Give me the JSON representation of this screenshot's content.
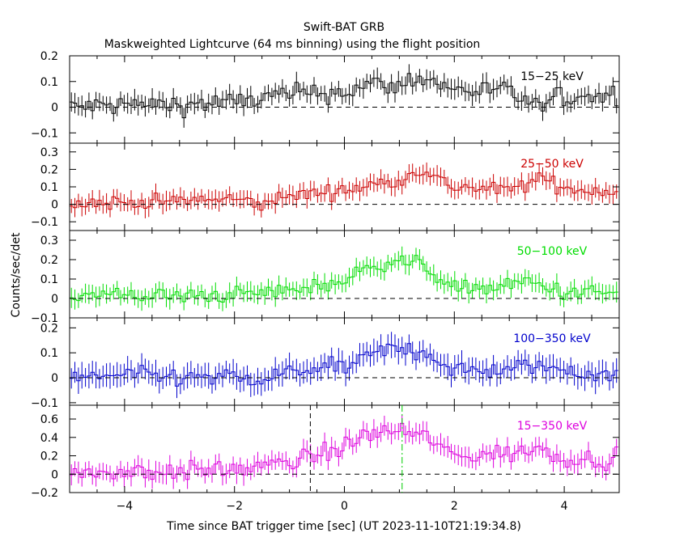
{
  "title": "Swift-BAT GRB",
  "subtitle": "Maskweighted Lightcurve (64 ms binning) using the flight position",
  "xlabel": "Time since BAT trigger time [sec] (UT 2023-11-10T21:19:34.8)",
  "ylabel": "Counts/sec/det",
  "colors": {
    "axes": "#000000",
    "band1": "#000000",
    "band2": "#cc0000",
    "band3": "#00dd00",
    "band4": "#0000cc",
    "band5": "#dd00dd",
    "trigger_marker": "#000000",
    "t90_marker": "#00cc00"
  },
  "chart_data": {
    "type": "line",
    "binning_sec": 0.064,
    "xlim": [
      -5,
      5
    ],
    "x_ticks": [
      "−4",
      "−2",
      "0",
      "2",
      "4"
    ],
    "shared_x": true,
    "panels": [
      {
        "name": "15−25 keV",
        "color": "#000000",
        "ylim": [
          -0.14,
          0.2
        ],
        "y_ticks": [
          "−0.1",
          "0",
          "0.1",
          "0.2"
        ],
        "zero_line": true,
        "key_points": [
          [
            -5,
            0.0
          ],
          [
            -4,
            0.01
          ],
          [
            -3,
            0.01
          ],
          [
            -2,
            0.02
          ],
          [
            -1,
            0.05
          ],
          [
            0,
            0.06
          ],
          [
            0.5,
            0.09
          ],
          [
            1,
            0.08
          ],
          [
            1.3,
            0.12
          ],
          [
            2,
            0.07
          ],
          [
            3,
            0.06
          ],
          [
            3.5,
            0.0
          ],
          [
            4,
            0.04
          ],
          [
            5,
            0.05
          ]
        ],
        "noise_amp": 0.04,
        "err": 0.035
      },
      {
        "name": "25−50 keV",
        "color": "#cc0000",
        "ylim": [
          -0.15,
          0.35
        ],
        "y_ticks": [
          "−0.1",
          "0",
          "0.1",
          "0.2",
          "0.3"
        ],
        "zero_line": true,
        "key_points": [
          [
            -5,
            0.01
          ],
          [
            -4,
            0.01
          ],
          [
            -3,
            0.02
          ],
          [
            -2,
            0.03
          ],
          [
            -1.5,
            0.0
          ],
          [
            -1,
            0.05
          ],
          [
            0,
            0.08
          ],
          [
            0.5,
            0.11
          ],
          [
            1,
            0.14
          ],
          [
            1.3,
            0.2
          ],
          [
            2,
            0.1
          ],
          [
            3,
            0.08
          ],
          [
            3.6,
            0.15
          ],
          [
            4,
            0.09
          ],
          [
            5,
            0.07
          ]
        ],
        "noise_amp": 0.04,
        "err": 0.05
      },
      {
        "name": "50−100 keV",
        "color": "#00dd00",
        "ylim": [
          -0.1,
          0.35
        ],
        "y_ticks": [
          "−0.1",
          "0",
          "0.1",
          "0.2",
          "0.3"
        ],
        "zero_line": true,
        "key_points": [
          [
            -5,
            0.01
          ],
          [
            -4,
            0.02
          ],
          [
            -3,
            0.01
          ],
          [
            -2,
            0.02
          ],
          [
            -1,
            0.04
          ],
          [
            0,
            0.09
          ],
          [
            0.5,
            0.17
          ],
          [
            1,
            0.2
          ],
          [
            1.5,
            0.16
          ],
          [
            2,
            0.05
          ],
          [
            3,
            0.06
          ],
          [
            3.3,
            0.09
          ],
          [
            4,
            0.03
          ],
          [
            5,
            0.03
          ]
        ],
        "noise_amp": 0.04,
        "err": 0.045
      },
      {
        "name": "100−350 keV",
        "color": "#0000cc",
        "ylim": [
          -0.11,
          0.24
        ],
        "y_ticks": [
          "−0.1",
          "0",
          "0.1",
          "0.2"
        ],
        "zero_line": true,
        "key_points": [
          [
            -5,
            0.0
          ],
          [
            -4,
            0.01
          ],
          [
            -3,
            0.0
          ],
          [
            -2,
            0.0
          ],
          [
            -1.5,
            -0.02
          ],
          [
            -1,
            0.03
          ],
          [
            0,
            0.04
          ],
          [
            0.6,
            0.1
          ],
          [
            1,
            0.12
          ],
          [
            1.5,
            0.1
          ],
          [
            2,
            0.03
          ],
          [
            3,
            0.03
          ],
          [
            3.5,
            0.05
          ],
          [
            4,
            0.03
          ],
          [
            5,
            0.01
          ]
        ],
        "noise_amp": 0.035,
        "err": 0.045
      },
      {
        "name": "15−350 keV",
        "color": "#dd00dd",
        "ylim": [
          -0.2,
          0.75
        ],
        "y_ticks": [
          "−0.2",
          "0",
          "0.2",
          "0.4",
          "0.6"
        ],
        "zero_line": true,
        "key_points": [
          [
            -5,
            0.0
          ],
          [
            -4,
            0.03
          ],
          [
            -3,
            0.03
          ],
          [
            -2,
            0.05
          ],
          [
            -1,
            0.12
          ],
          [
            0,
            0.3
          ],
          [
            0.5,
            0.45
          ],
          [
            1,
            0.48
          ],
          [
            1.5,
            0.4
          ],
          [
            2,
            0.2
          ],
          [
            3,
            0.22
          ],
          [
            3.5,
            0.28
          ],
          [
            4,
            0.18
          ],
          [
            5,
            0.15
          ]
        ],
        "noise_amp": 0.1,
        "err": 0.1
      }
    ],
    "annotations": [
      {
        "type": "vline",
        "panel": 4,
        "x": -0.62,
        "style": "dashed",
        "color": "#000000"
      },
      {
        "type": "vline",
        "panel": 4,
        "x": 1.05,
        "style": "dashdot",
        "color": "#00cc00"
      }
    ]
  }
}
